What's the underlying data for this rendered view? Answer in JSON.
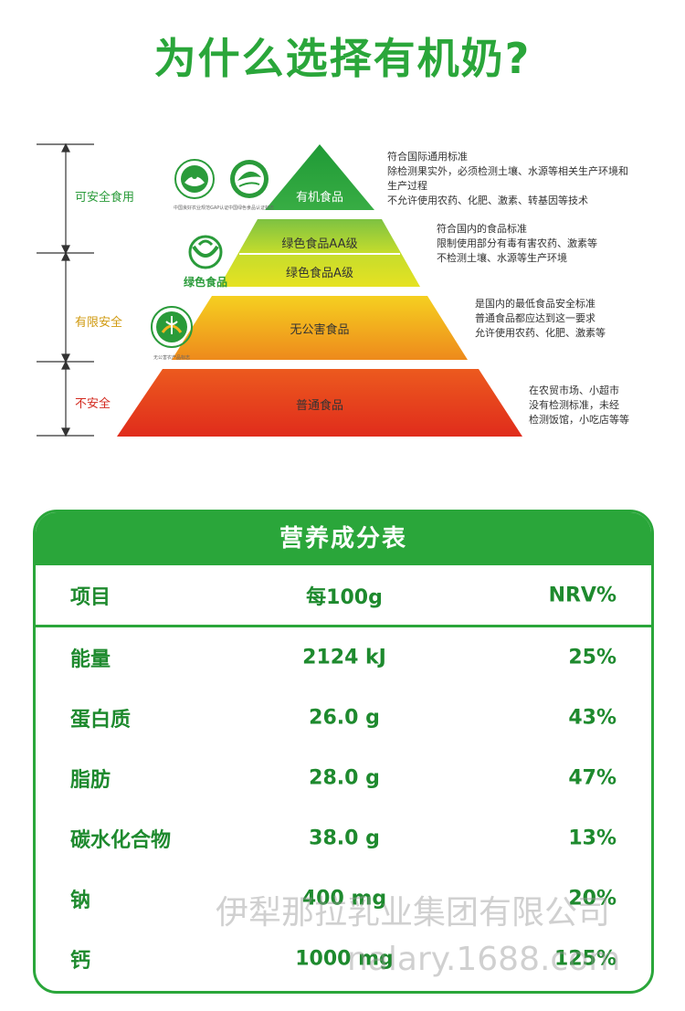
{
  "header": {
    "title": "为什么选择有机奶?"
  },
  "pyramid": {
    "side_labels": {
      "safe": "可安全食用",
      "limited": "有限安全",
      "unsafe": "不安全"
    },
    "tiers": {
      "organic": "有机食品",
      "green_aa": "绿色食品AA级",
      "green_a": "绿色食品A级",
      "pollution_free": "无公害食品",
      "ordinary": "普通食品"
    },
    "descriptions": {
      "organic": [
        "符合国际通用标准",
        "除检测果实外，必须检测土壤、水源等相关生产环境和",
        "生产过程",
        "不允许使用农药、化肥、激素、转基因等技术"
      ],
      "green": [
        "符合国内的食品标准",
        "限制使用部分有毒有害农药、激素等",
        "不检测土壤、水源等生产环境"
      ],
      "pollution_free": [
        "是国内的最低食品安全标准",
        "普通食品都应达到这一要求",
        "允许使用农药、化肥、激素等"
      ],
      "ordinary": [
        "在农贸市场、小超市",
        "没有检测标准，未经",
        "检测饭馆，小吃店等等"
      ]
    },
    "logos": {
      "gap_caption": "中国良好农业规范GAP认证",
      "green_caption": "中国绿色食品认证标志",
      "green_food_text": "绿色食品",
      "no_pollution_caption": "无公害农产品标志"
    }
  },
  "nutrition": {
    "title": "营养成分表",
    "columns": [
      "项目",
      "每100g",
      "NRV%"
    ],
    "rows": [
      [
        "能量",
        "2124 kJ",
        "25%"
      ],
      [
        "蛋白质",
        "26.0 g",
        "43%"
      ],
      [
        "脂肪",
        "28.0 g",
        "47%"
      ],
      [
        "碳水化合物",
        "38.0 g",
        "13%"
      ],
      [
        "钠",
        "400 mg",
        "20%"
      ],
      [
        "钙",
        "1000 mg",
        "125%"
      ]
    ]
  },
  "watermark": {
    "line1": "伊犁那拉乳业集团有限公司",
    "line2": "nalary.1688.com"
  },
  "colors": {
    "accent": "#2aa63a",
    "organic": "#26a13b",
    "green": "#a8cf2a",
    "pollution_free": "#f2b620",
    "ordinary": "#e8351f"
  }
}
